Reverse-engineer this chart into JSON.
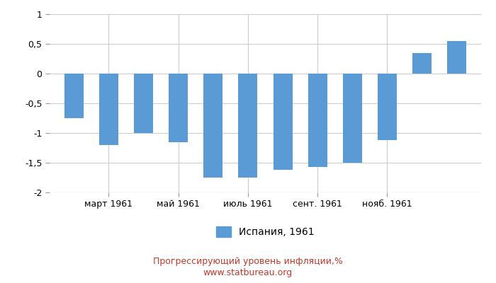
{
  "xtick_positions": [
    1,
    3,
    5,
    7,
    9
  ],
  "xtick_labels": [
    "март 1961",
    "май 1961",
    "июль 1961",
    "сент. 1961",
    "нояб. 1961"
  ],
  "values": [
    -0.75,
    -1.2,
    -1.0,
    -1.15,
    -1.75,
    -1.75,
    -1.62,
    -1.57,
    -1.5,
    -1.12,
    0.35,
    0.55
  ],
  "bar_color": "#5b9bd5",
  "ylim": [
    -2.0,
    1.0
  ],
  "yticks": [
    -2.0,
    -1.5,
    -1.0,
    -0.5,
    0.0,
    0.5,
    1.0
  ],
  "ytick_labels": [
    "-2",
    "-1,5",
    "-1",
    "-0,5",
    "0",
    "0,5",
    "1"
  ],
  "legend_label": "Испания, 1961",
  "title_line1": "Прогрессирующий уровень инфляции,%",
  "title_line2": "www.statbureau.org",
  "grid_color": "#cccccc",
  "background_color": "#ffffff",
  "title_color": "#c0392b",
  "title_fontsize": 9,
  "tick_fontsize": 9,
  "legend_fontsize": 10,
  "bar_width": 0.55
}
